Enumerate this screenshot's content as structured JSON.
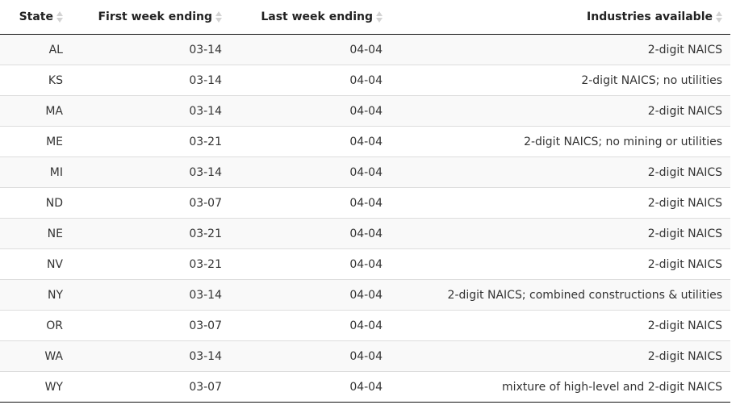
{
  "table": {
    "headers": [
      {
        "label": "State"
      },
      {
        "label": "First week ending"
      },
      {
        "label": "Last week ending"
      },
      {
        "label": "Industries available"
      }
    ],
    "rows": [
      {
        "state": "AL",
        "first": "03-14",
        "last": "04-04",
        "industries": "2-digit NAICS"
      },
      {
        "state": "KS",
        "first": "03-14",
        "last": "04-04",
        "industries": "2-digit NAICS; no utilities"
      },
      {
        "state": "MA",
        "first": "03-14",
        "last": "04-04",
        "industries": "2-digit NAICS"
      },
      {
        "state": "ME",
        "first": "03-21",
        "last": "04-04",
        "industries": "2-digit NAICS; no mining or utilities"
      },
      {
        "state": "MI",
        "first": "03-14",
        "last": "04-04",
        "industries": "2-digit NAICS"
      },
      {
        "state": "ND",
        "first": "03-07",
        "last": "04-04",
        "industries": "2-digit NAICS"
      },
      {
        "state": "NE",
        "first": "03-21",
        "last": "04-04",
        "industries": "2-digit NAICS"
      },
      {
        "state": "NV",
        "first": "03-21",
        "last": "04-04",
        "industries": "2-digit NAICS"
      },
      {
        "state": "NY",
        "first": "03-14",
        "last": "04-04",
        "industries": "2-digit NAICS; combined constructions & utilities"
      },
      {
        "state": "OR",
        "first": "03-07",
        "last": "04-04",
        "industries": "2-digit NAICS"
      },
      {
        "state": "WA",
        "first": "03-14",
        "last": "04-04",
        "industries": "2-digit NAICS"
      },
      {
        "state": "WY",
        "first": "03-07",
        "last": "04-04",
        "industries": "mixture of high-level and 2-digit NAICS"
      }
    ]
  },
  "colors": {
    "stripe": "#f9f9f9",
    "row_divider": "#dddddd",
    "header_rule": "#111111",
    "sort_icon": "#d3d3d3",
    "text": "#333333"
  }
}
